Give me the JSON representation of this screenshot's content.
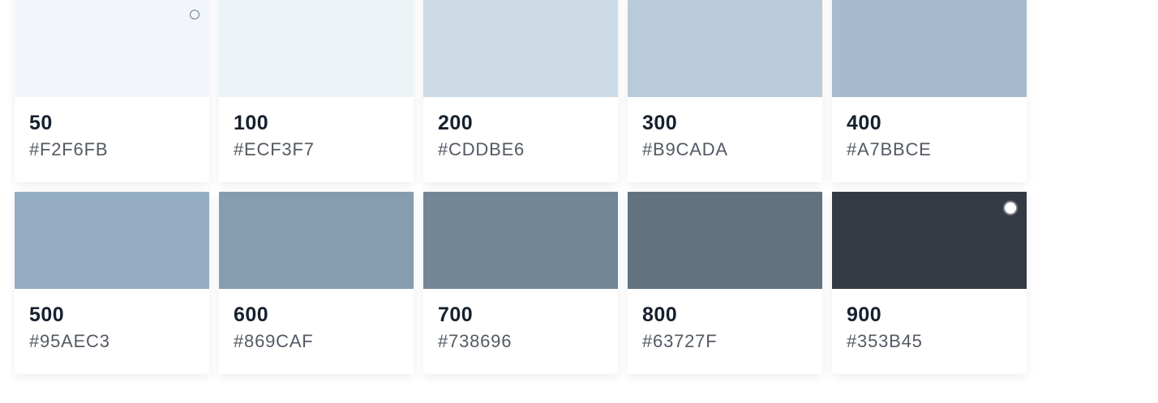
{
  "swatches": [
    {
      "shade": "50",
      "hex": "#F2F6FB",
      "indicator": "radio-empty"
    },
    {
      "shade": "100",
      "hex": "#ECF3F7"
    },
    {
      "shade": "200",
      "hex": "#CDDBE6"
    },
    {
      "shade": "300",
      "hex": "#B9CADA"
    },
    {
      "shade": "400",
      "hex": "#A7BBCE"
    },
    {
      "shade": "500",
      "hex": "#95AEC3"
    },
    {
      "shade": "600",
      "hex": "#869CAF"
    },
    {
      "shade": "700",
      "hex": "#738696"
    },
    {
      "shade": "800",
      "hex": "#63727F"
    },
    {
      "shade": "900",
      "hex": "#353B45",
      "indicator": "radio-selected"
    }
  ]
}
